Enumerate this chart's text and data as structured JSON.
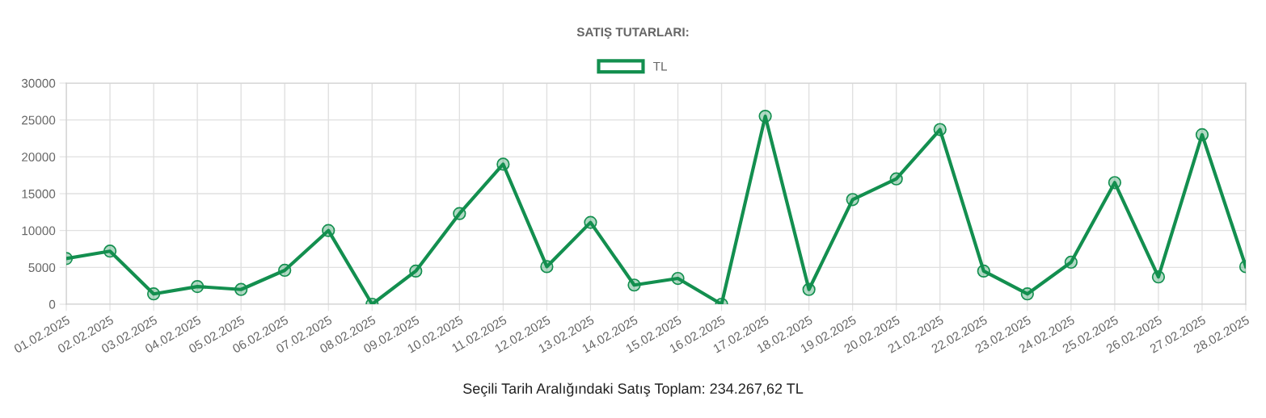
{
  "chart_data": {
    "type": "line",
    "title": "SATIŞ TUTARLARI:",
    "categories": [
      "01.02.2025",
      "02.02.2025",
      "03.02.2025",
      "04.02.2025",
      "05.02.2025",
      "06.02.2025",
      "07.02.2025",
      "08.02.2025",
      "09.02.2025",
      "10.02.2025",
      "11.02.2025",
      "12.02.2025",
      "13.02.2025",
      "14.02.2025",
      "15.02.2025",
      "16.02.2025",
      "17.02.2025",
      "18.02.2025",
      "19.02.2025",
      "20.02.2025",
      "21.02.2025",
      "22.02.2025",
      "23.02.2025",
      "24.02.2025",
      "25.02.2025",
      "26.02.2025",
      "27.02.2025",
      "28.02.2025"
    ],
    "series": [
      {
        "name": "TL",
        "color": "#138f4f",
        "values": [
          6200,
          7200,
          1400,
          2400,
          2000,
          4600,
          10000,
          0,
          4500,
          12300,
          19000,
          5100,
          11100,
          2600,
          3500,
          0,
          25500,
          2000,
          14200,
          17000,
          23700,
          4500,
          1400,
          5700,
          16500,
          3700,
          23000,
          5100
        ]
      }
    ],
    "ylim": [
      0,
      30000
    ],
    "yticks": [
      0,
      5000,
      10000,
      15000,
      20000,
      25000,
      30000
    ],
    "grid": true,
    "legend": "top",
    "marker": "circle",
    "line_style": "solid",
    "annotations": [
      "Seçili Tarih Aralığındaki Satış Toplam: 234.267,62 TL"
    ]
  }
}
